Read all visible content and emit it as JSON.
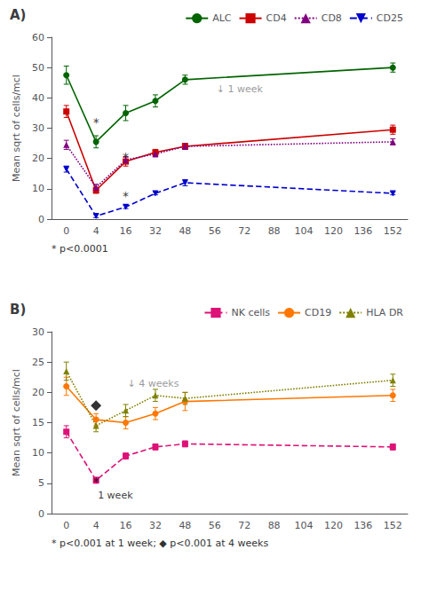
{
  "chart_data": [
    {
      "type": "line",
      "title": "A)",
      "categories": [
        "0",
        "4",
        "16",
        "32",
        "48",
        "56",
        "72",
        "88",
        "104",
        "120",
        "136",
        "152"
      ],
      "series": [
        {
          "name": "ALC",
          "color": "#006400",
          "marker": "circle",
          "line_style": "solid",
          "x": [
            "0",
            "4",
            "16",
            "32",
            "48",
            "152"
          ],
          "values": [
            47.5,
            25.5,
            35.0,
            39.0,
            46.0,
            50.0
          ],
          "errors": [
            3.0,
            2.0,
            2.5,
            2.0,
            1.5,
            1.5
          ]
        },
        {
          "name": "CD4",
          "color": "#cc0000",
          "marker": "square",
          "line_style": "solid",
          "x": [
            "0",
            "4",
            "16",
            "32",
            "48",
            "152"
          ],
          "values": [
            35.5,
            9.5,
            19.0,
            22.0,
            24.0,
            29.5
          ],
          "errors": [
            2.0,
            1.0,
            1.5,
            1.0,
            1.0,
            1.5
          ]
        },
        {
          "name": "CD8",
          "color": "#800080",
          "marker": "triangle",
          "line_style": "dotted",
          "x": [
            "0",
            "4",
            "16",
            "32",
            "48",
            "152"
          ],
          "values": [
            24.5,
            10.5,
            19.5,
            21.5,
            24.0,
            25.5
          ],
          "errors": [
            1.5,
            1.0,
            1.0,
            1.0,
            1.0,
            1.0
          ]
        },
        {
          "name": "CD25",
          "color": "#0000cc",
          "marker": "triangle-down",
          "line_style": "dashed",
          "x": [
            "0",
            "4",
            "16",
            "32",
            "48",
            "152"
          ],
          "values": [
            16.5,
            1.0,
            4.0,
            8.5,
            12.0,
            8.5
          ],
          "errors": [
            1.0,
            0.5,
            0.5,
            0.5,
            1.0,
            0.5
          ]
        }
      ],
      "annotations": [
        {
          "text": "*",
          "x": "4",
          "y": 30.0
        },
        {
          "text": "*",
          "x": "16",
          "y": 18.5
        },
        {
          "text": "*",
          "x": "16",
          "y": 5.5
        },
        {
          "text": "↓ 1 week",
          "x": "56",
          "y": 43.0
        }
      ],
      "ylabel": "Mean sqrt of cells/mcl",
      "ylim": [
        0,
        60
      ],
      "yticks": [
        0,
        10,
        20,
        30,
        40,
        50,
        60
      ],
      "grid": false,
      "legend": "upper right",
      "footnote": "* p<0.0001"
    },
    {
      "type": "line",
      "title": "B)",
      "categories": [
        "0",
        "4",
        "16",
        "32",
        "48",
        "56",
        "72",
        "88",
        "104",
        "120",
        "136",
        "152"
      ],
      "series": [
        {
          "name": "NK cells",
          "color": "#dd1177",
          "marker": "square",
          "line_style": "dashed",
          "x": [
            "0",
            "4",
            "16",
            "32",
            "48",
            "152"
          ],
          "values": [
            13.5,
            5.5,
            9.5,
            11.0,
            11.5,
            11.0
          ],
          "errors": [
            1.0,
            0.5,
            0.5,
            0.5,
            0.5,
            0.5
          ]
        },
        {
          "name": "CD19",
          "color": "#ff7700",
          "marker": "circle",
          "line_style": "solid",
          "x": [
            "0",
            "4",
            "16",
            "32",
            "48",
            "152"
          ],
          "values": [
            21.0,
            15.5,
            15.0,
            16.5,
            18.5,
            19.5
          ],
          "errors": [
            1.5,
            1.0,
            1.0,
            1.0,
            1.5,
            1.0
          ]
        },
        {
          "name": "HLA DR",
          "color": "#808000",
          "marker": "triangle",
          "line_style": "dotted",
          "x": [
            "0",
            "4",
            "16",
            "32",
            "48",
            "152"
          ],
          "values": [
            23.5,
            14.5,
            17.0,
            19.5,
            19.0,
            22.0
          ],
          "errors": [
            1.5,
            1.0,
            1.0,
            1.0,
            1.0,
            1.0
          ]
        }
      ],
      "annotations": [
        {
          "marker": "diamond",
          "color": "#000000",
          "x": "4",
          "y": 17.8
        },
        {
          "text": "↓ 4 weeks",
          "x": "16",
          "y": 21.5
        },
        {
          "text": "*",
          "x": "4",
          "y": 4.2
        },
        {
          "text": "1 week",
          "x": "4",
          "y": 3.0
        }
      ],
      "ylabel": "Mean sqrt of cells/mcl",
      "ylim": [
        0,
        30
      ],
      "yticks": [
        0,
        5,
        10,
        15,
        20,
        25,
        30
      ],
      "grid": false,
      "legend": "upper right",
      "footnote": "* p<0.001 at 1 week; ◆ p<0.001 at 4 weeks"
    }
  ]
}
